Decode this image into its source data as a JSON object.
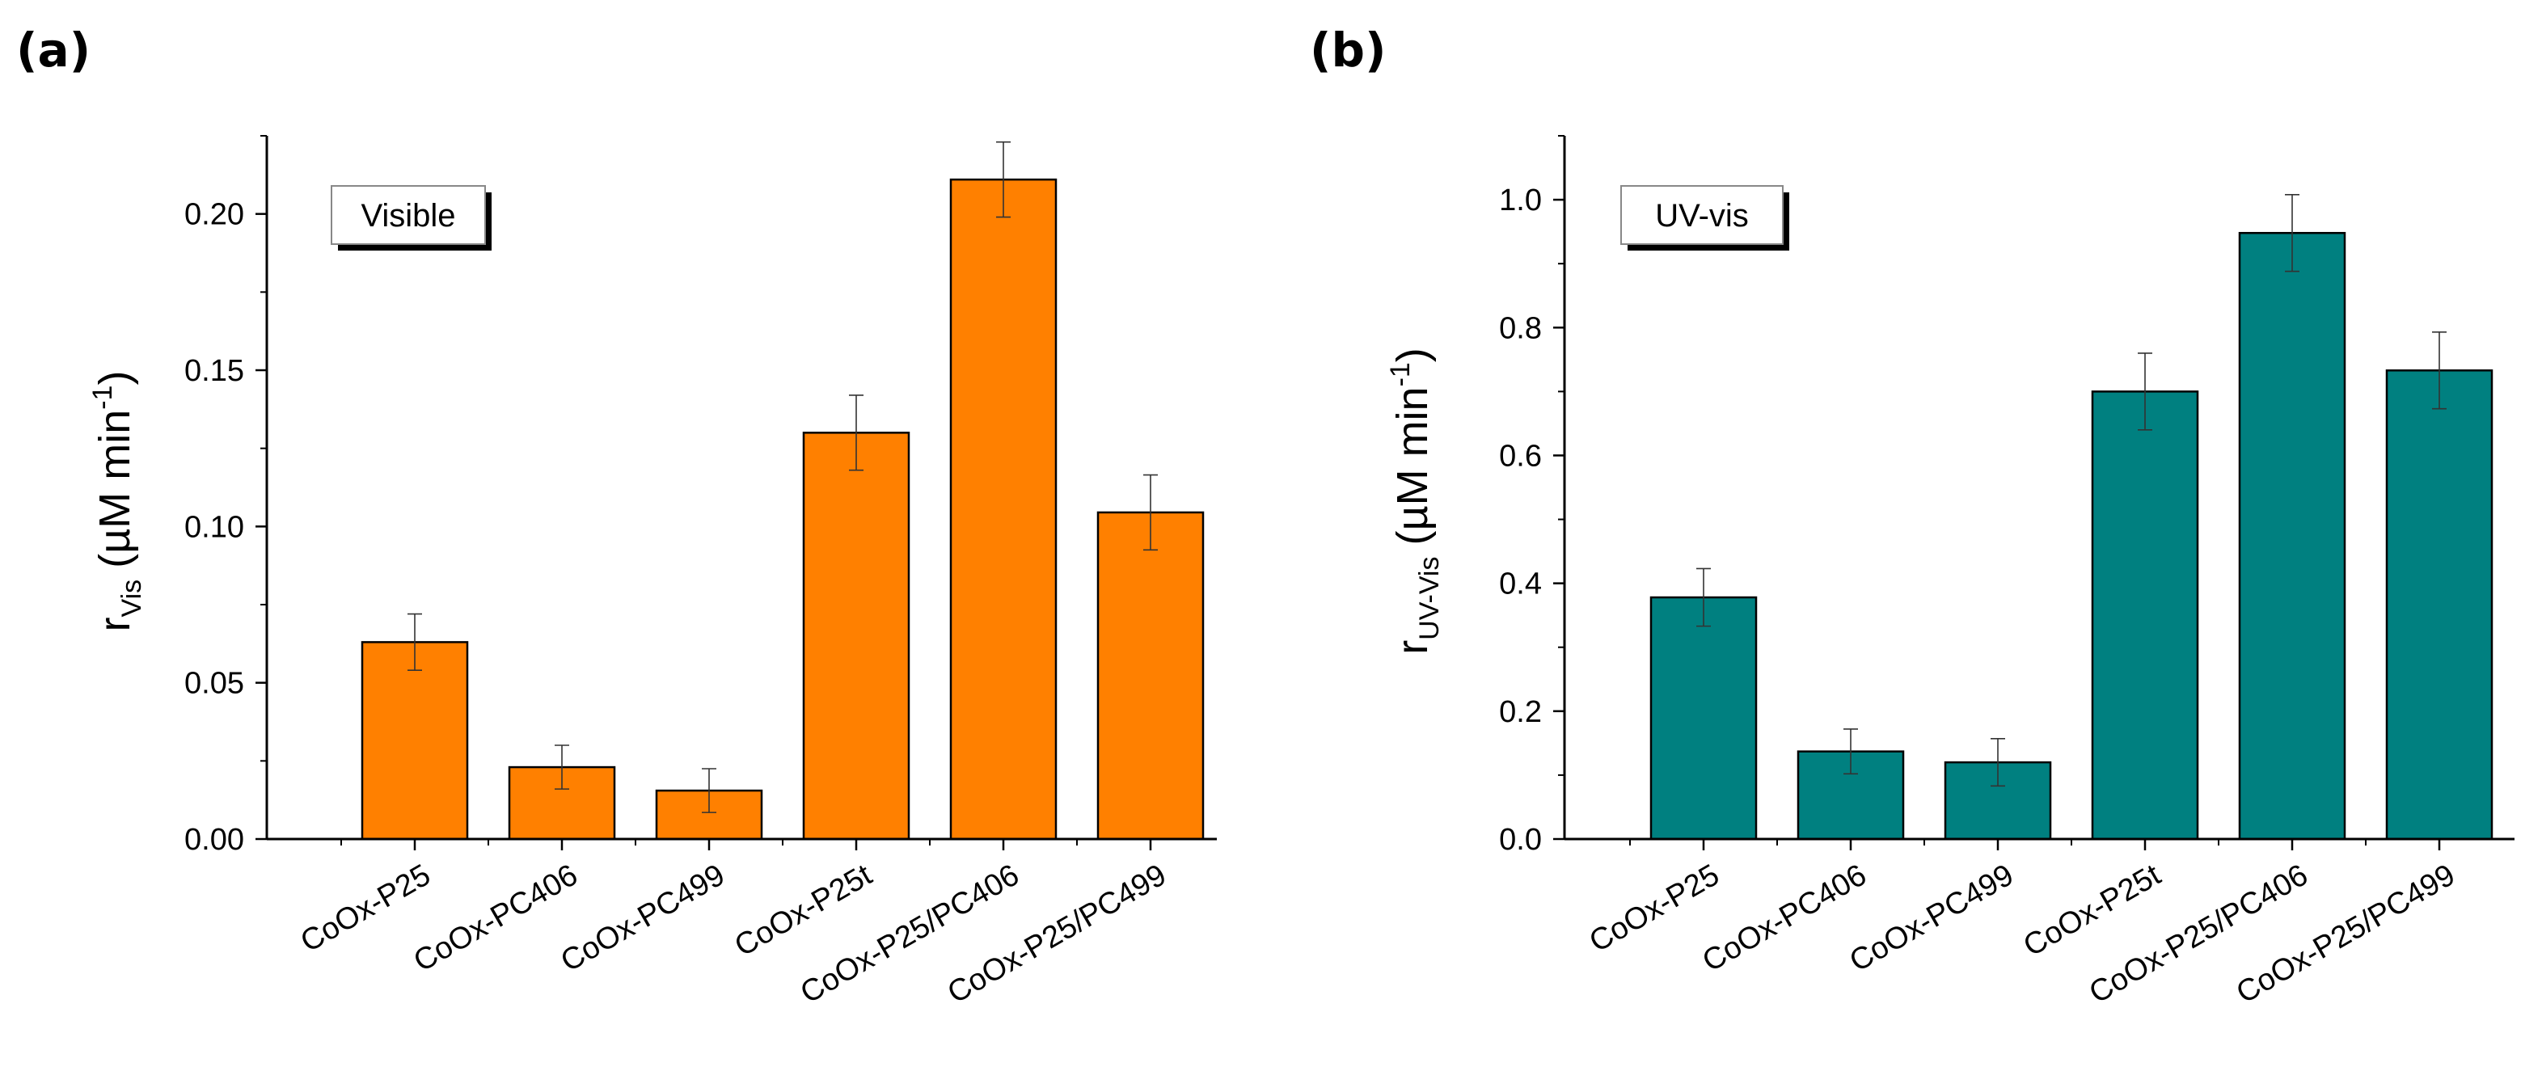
{
  "figure": {
    "panels": [
      "(a)",
      "(b)"
    ]
  },
  "chart_data": [
    {
      "type": "bar",
      "panel": "(a)",
      "legend": "Visible",
      "ylabel_main": "r",
      "ylabel_sub": "Vis",
      "ylabel_units": "(µM min",
      "ylabel_exp": "-1",
      "ylabel_close": ")",
      "ylim": [
        0,
        0.225
      ],
      "ymajor": [
        0.0,
        0.05,
        0.1,
        0.15,
        0.2
      ],
      "ytick_labels": [
        "0.00",
        "0.05",
        "0.10",
        "0.15",
        "0.20"
      ],
      "yminor": [
        0.025,
        0.075,
        0.125,
        0.175,
        0.225
      ],
      "categories": [
        "CoOx-P25",
        "CoOx-PC406",
        "CoOx-PC499",
        "CoOx-P25t",
        "CoOx-P25/PC406",
        "CoOx-P25/PC499"
      ],
      "values": [
        0.063,
        0.023,
        0.0155,
        0.13,
        0.211,
        0.1045
      ],
      "errors": [
        0.009,
        0.007,
        0.007,
        0.012,
        0.012,
        0.012
      ],
      "color": "#ff8000"
    },
    {
      "type": "bar",
      "panel": "(b)",
      "legend": "UV-vis",
      "ylabel_main": "r",
      "ylabel_sub": "UV-Vis",
      "ylabel_units": "(µM min",
      "ylabel_exp": "-1",
      "ylabel_close": ")",
      "ylim": [
        0,
        1.1
      ],
      "ymajor": [
        0.0,
        0.2,
        0.4,
        0.6,
        0.8,
        1.0
      ],
      "ytick_labels": [
        "0.0",
        "0.2",
        "0.4",
        "0.6",
        "0.8",
        "1.0"
      ],
      "yminor": [
        0.1,
        0.3,
        0.5,
        0.7,
        0.9,
        1.1
      ],
      "categories": [
        "CoOx-P25",
        "CoOx-PC406",
        "CoOx-PC499",
        "CoOx-P25t",
        "CoOx-P25/PC406",
        "CoOx-P25/PC499"
      ],
      "values": [
        0.378,
        0.137,
        0.12,
        0.7,
        0.948,
        0.733
      ],
      "errors": [
        0.045,
        0.035,
        0.037,
        0.06,
        0.06,
        0.06
      ],
      "color": "#008080"
    }
  ]
}
